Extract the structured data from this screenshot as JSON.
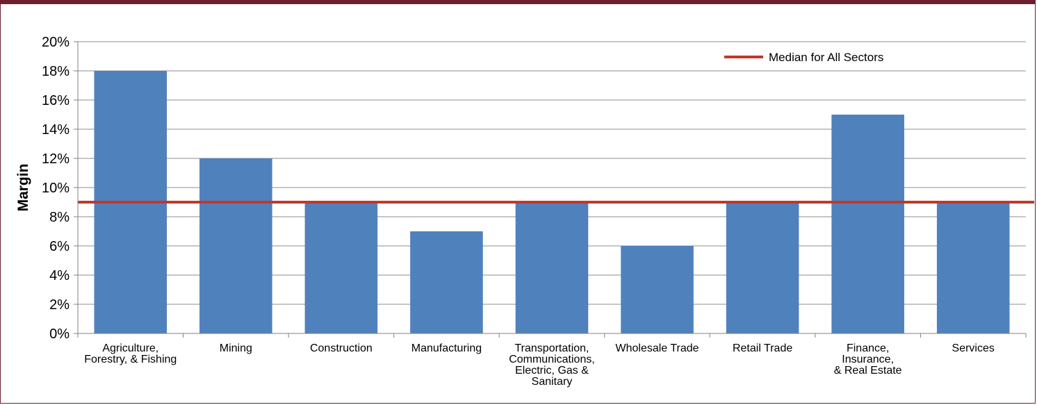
{
  "chart_data": {
    "type": "bar",
    "title": "",
    "xlabel": "",
    "ylabel": "Margin",
    "ylim": [
      0,
      20
    ],
    "yticks": [
      "0%",
      "2%",
      "4%",
      "6%",
      "8%",
      "10%",
      "12%",
      "14%",
      "16%",
      "18%",
      "20%"
    ],
    "grid": true,
    "categories": [
      [
        "Agriculture,",
        "Forestry, & Fishing"
      ],
      [
        "Mining"
      ],
      [
        "Construction"
      ],
      [
        "Manufacturing"
      ],
      [
        "Transportation,",
        "Communications,",
        "Electric, Gas &",
        "Sanitary"
      ],
      [
        "Wholesale Trade"
      ],
      [
        "Retail Trade"
      ],
      [
        "Finance,",
        "Insurance,",
        "& Real Estate"
      ],
      [
        "Services"
      ]
    ],
    "series": [
      {
        "values": [
          18,
          12,
          9,
          7,
          9,
          6,
          9,
          15,
          9
        ],
        "color": "#4f81bd"
      }
    ],
    "reference_line": {
      "name": "Median for All Sectors",
      "value": 9,
      "color": "#c0392b"
    },
    "legend_position": "top-right",
    "colors": {
      "frame": "#6e1f2e",
      "grid": "#8c8c8c",
      "axis": "#808080"
    }
  }
}
